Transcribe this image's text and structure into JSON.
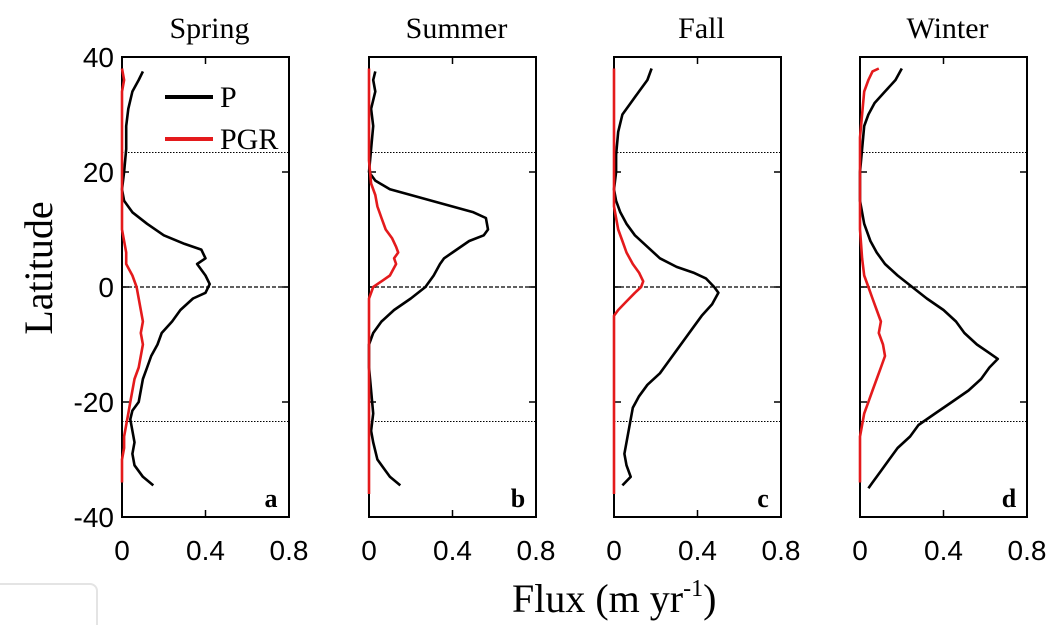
{
  "chart_data": {
    "type": "line",
    "ylabel": "Latitude",
    "xlabel": "Flux (m yr",
    "xlabel_sup": "-1",
    "xlabel_close": ")",
    "xlim": [
      0,
      0.8
    ],
    "ylim": [
      -40,
      40
    ],
    "xticks": [
      "0",
      "0.4",
      "0.8"
    ],
    "yticks": [
      "40",
      "20",
      "0",
      "-20",
      "-40"
    ],
    "tropic_lines": [
      23.4,
      -23.4
    ],
    "equator_line": 0,
    "grid": false,
    "legend": {
      "placement": "top-left",
      "entries": [
        "P",
        "PGR"
      ]
    },
    "colors": {
      "P": "#000000",
      "PGR": "#e41a1c"
    },
    "panels": [
      {
        "title": "Spring",
        "letter": "a",
        "series": [
          {
            "name": "P",
            "color": "#000000",
            "points": [
              [
                0.1,
                37.5
              ],
              [
                0.08,
                36
              ],
              [
                0.05,
                34
              ],
              [
                0.03,
                31
              ],
              [
                0.02,
                28
              ],
              [
                0.02,
                24
              ],
              [
                0.01,
                20
              ],
              [
                0.0,
                17
              ],
              [
                0.01,
                15
              ],
              [
                0.05,
                13
              ],
              [
                0.12,
                11
              ],
              [
                0.2,
                9
              ],
              [
                0.3,
                7.5
              ],
              [
                0.38,
                6.5
              ],
              [
                0.4,
                5
              ],
              [
                0.36,
                4
              ],
              [
                0.38,
                3
              ],
              [
                0.4,
                2
              ],
              [
                0.42,
                0.5
              ],
              [
                0.4,
                -1
              ],
              [
                0.34,
                -2
              ],
              [
                0.28,
                -4
              ],
              [
                0.24,
                -6
              ],
              [
                0.19,
                -8
              ],
              [
                0.17,
                -10
              ],
              [
                0.14,
                -12
              ],
              [
                0.12,
                -14
              ],
              [
                0.1,
                -16
              ],
              [
                0.09,
                -18
              ],
              [
                0.08,
                -20
              ],
              [
                0.05,
                -21.5
              ],
              [
                0.04,
                -23
              ],
              [
                0.05,
                -25
              ],
              [
                0.06,
                -27
              ],
              [
                0.05,
                -29
              ],
              [
                0.06,
                -31
              ],
              [
                0.1,
                -33
              ],
              [
                0.15,
                -34.5
              ]
            ]
          },
          {
            "name": "PGR",
            "color": "#e41a1c",
            "points": [
              [
                0.0,
                38
              ],
              [
                0.01,
                36
              ],
              [
                0.0,
                34
              ],
              [
                0.0,
                30
              ],
              [
                0.0,
                24
              ],
              [
                0.0,
                20
              ],
              [
                0.0,
                15
              ],
              [
                0.0,
                10
              ],
              [
                0.01,
                8
              ],
              [
                0.02,
                6
              ],
              [
                0.02,
                4
              ],
              [
                0.05,
                2
              ],
              [
                0.07,
                0
              ],
              [
                0.08,
                -2
              ],
              [
                0.09,
                -4
              ],
              [
                0.1,
                -6
              ],
              [
                0.09,
                -8
              ],
              [
                0.1,
                -10
              ],
              [
                0.09,
                -12
              ],
              [
                0.08,
                -14
              ],
              [
                0.06,
                -16
              ],
              [
                0.05,
                -18
              ],
              [
                0.04,
                -20
              ],
              [
                0.03,
                -22
              ],
              [
                0.02,
                -24
              ],
              [
                0.01,
                -26
              ],
              [
                0.01,
                -28
              ],
              [
                0.0,
                -30
              ],
              [
                0.0,
                -34
              ]
            ]
          }
        ]
      },
      {
        "title": "Summer",
        "letter": "b",
        "series": [
          {
            "name": "P",
            "color": "#000000",
            "points": [
              [
                0.03,
                37.5
              ],
              [
                0.02,
                36
              ],
              [
                0.03,
                34
              ],
              [
                0.01,
                31
              ],
              [
                0.02,
                28
              ],
              [
                0.01,
                24
              ],
              [
                0.0,
                20
              ],
              [
                0.03,
                18.5
              ],
              [
                0.1,
                17
              ],
              [
                0.2,
                16
              ],
              [
                0.3,
                15
              ],
              [
                0.4,
                14
              ],
              [
                0.5,
                13
              ],
              [
                0.56,
                12
              ],
              [
                0.57,
                10
              ],
              [
                0.55,
                9
              ],
              [
                0.48,
                8
              ],
              [
                0.4,
                6
              ],
              [
                0.36,
                5
              ],
              [
                0.34,
                4
              ],
              [
                0.31,
                2
              ],
              [
                0.27,
                0
              ],
              [
                0.2,
                -2
              ],
              [
                0.12,
                -4
              ],
              [
                0.06,
                -6
              ],
              [
                0.02,
                -8
              ],
              [
                0.0,
                -10
              ],
              [
                0.0,
                -14
              ],
              [
                0.01,
                -18
              ],
              [
                0.02,
                -22
              ],
              [
                0.01,
                -25
              ],
              [
                0.02,
                -27
              ],
              [
                0.04,
                -30
              ],
              [
                0.08,
                -32
              ],
              [
                0.1,
                -33
              ],
              [
                0.15,
                -34.5
              ]
            ]
          },
          {
            "name": "PGR",
            "color": "#e41a1c",
            "points": [
              [
                0.0,
                38
              ],
              [
                0.0,
                34
              ],
              [
                0.0,
                28
              ],
              [
                0.0,
                22
              ],
              [
                0.01,
                18
              ],
              [
                0.03,
                16
              ],
              [
                0.04,
                14
              ],
              [
                0.06,
                12
              ],
              [
                0.08,
                10
              ],
              [
                0.11,
                8.5
              ],
              [
                0.13,
                7
              ],
              [
                0.14,
                6
              ],
              [
                0.12,
                5
              ],
              [
                0.13,
                4
              ],
              [
                0.1,
                2
              ],
              [
                0.06,
                1
              ],
              [
                0.02,
                0
              ],
              [
                0.0,
                -2
              ],
              [
                0.0,
                -10
              ],
              [
                0.0,
                -20
              ],
              [
                0.0,
                -30
              ],
              [
                0.0,
                -36
              ]
            ]
          }
        ]
      },
      {
        "title": "Fall",
        "letter": "c",
        "series": [
          {
            "name": "P",
            "color": "#000000",
            "points": [
              [
                0.18,
                38
              ],
              [
                0.16,
                36
              ],
              [
                0.12,
                34
              ],
              [
                0.08,
                32
              ],
              [
                0.04,
                30
              ],
              [
                0.02,
                27
              ],
              [
                0.01,
                23
              ],
              [
                0.01,
                20
              ],
              [
                0.0,
                17
              ],
              [
                0.01,
                15
              ],
              [
                0.03,
                13
              ],
              [
                0.06,
                11
              ],
              [
                0.1,
                9
              ],
              [
                0.16,
                7
              ],
              [
                0.22,
                5
              ],
              [
                0.3,
                3.5
              ],
              [
                0.38,
                2.5
              ],
              [
                0.44,
                1.5
              ],
              [
                0.48,
                0
              ],
              [
                0.5,
                -1
              ],
              [
                0.47,
                -3
              ],
              [
                0.42,
                -5
              ],
              [
                0.38,
                -7
              ],
              [
                0.34,
                -9
              ],
              [
                0.3,
                -11
              ],
              [
                0.26,
                -13
              ],
              [
                0.22,
                -15
              ],
              [
                0.16,
                -17
              ],
              [
                0.12,
                -19
              ],
              [
                0.09,
                -21
              ],
              [
                0.08,
                -23
              ],
              [
                0.07,
                -25
              ],
              [
                0.06,
                -27
              ],
              [
                0.05,
                -29
              ],
              [
                0.06,
                -31
              ],
              [
                0.08,
                -33
              ],
              [
                0.04,
                -34.5
              ]
            ]
          },
          {
            "name": "PGR",
            "color": "#e41a1c",
            "points": [
              [
                0.0,
                38
              ],
              [
                0.0,
                30
              ],
              [
                0.0,
                20
              ],
              [
                0.0,
                14
              ],
              [
                0.01,
                12
              ],
              [
                0.02,
                10
              ],
              [
                0.04,
                8
              ],
              [
                0.06,
                6
              ],
              [
                0.09,
                4
              ],
              [
                0.12,
                2.5
              ],
              [
                0.14,
                1
              ],
              [
                0.13,
                0
              ],
              [
                0.1,
                -1
              ],
              [
                0.06,
                -2.5
              ],
              [
                0.02,
                -4
              ],
              [
                0.0,
                -5
              ],
              [
                0.0,
                -12
              ],
              [
                0.0,
                -20
              ],
              [
                0.0,
                -30
              ],
              [
                0.0,
                -36
              ]
            ]
          }
        ]
      },
      {
        "title": "Winter",
        "letter": "d",
        "series": [
          {
            "name": "P",
            "color": "#000000",
            "points": [
              [
                0.2,
                38
              ],
              [
                0.17,
                36
              ],
              [
                0.12,
                34
              ],
              [
                0.07,
                32
              ],
              [
                0.04,
                30
              ],
              [
                0.02,
                28
              ],
              [
                0.01,
                24
              ],
              [
                0.0,
                20
              ],
              [
                0.0,
                15
              ],
              [
                0.02,
                11
              ],
              [
                0.05,
                8
              ],
              [
                0.08,
                6
              ],
              [
                0.12,
                4
              ],
              [
                0.18,
                2
              ],
              [
                0.25,
                0
              ],
              [
                0.32,
                -2
              ],
              [
                0.4,
                -4
              ],
              [
                0.46,
                -6
              ],
              [
                0.5,
                -8
              ],
              [
                0.56,
                -10
              ],
              [
                0.62,
                -11.5
              ],
              [
                0.66,
                -12.5
              ],
              [
                0.62,
                -14
              ],
              [
                0.58,
                -16
              ],
              [
                0.52,
                -18
              ],
              [
                0.44,
                -20
              ],
              [
                0.36,
                -22
              ],
              [
                0.28,
                -24
              ],
              [
                0.24,
                -26
              ],
              [
                0.18,
                -28
              ],
              [
                0.14,
                -30
              ],
              [
                0.1,
                -32
              ],
              [
                0.06,
                -34
              ],
              [
                0.04,
                -35
              ]
            ]
          },
          {
            "name": "PGR",
            "color": "#e41a1c",
            "points": [
              [
                0.09,
                38
              ],
              [
                0.06,
                37.5
              ],
              [
                0.04,
                36
              ],
              [
                0.02,
                34
              ],
              [
                0.01,
                30
              ],
              [
                0.0,
                26
              ],
              [
                0.0,
                20
              ],
              [
                0.0,
                10
              ],
              [
                0.01,
                5
              ],
              [
                0.02,
                2
              ],
              [
                0.04,
                0
              ],
              [
                0.06,
                -2
              ],
              [
                0.08,
                -4
              ],
              [
                0.1,
                -6
              ],
              [
                0.09,
                -8
              ],
              [
                0.11,
                -10
              ],
              [
                0.12,
                -12
              ],
              [
                0.1,
                -14
              ],
              [
                0.08,
                -16
              ],
              [
                0.06,
                -18
              ],
              [
                0.04,
                -20
              ],
              [
                0.02,
                -22
              ],
              [
                0.01,
                -24
              ],
              [
                0.0,
                -26
              ],
              [
                0.0,
                -34
              ]
            ]
          }
        ]
      }
    ]
  }
}
